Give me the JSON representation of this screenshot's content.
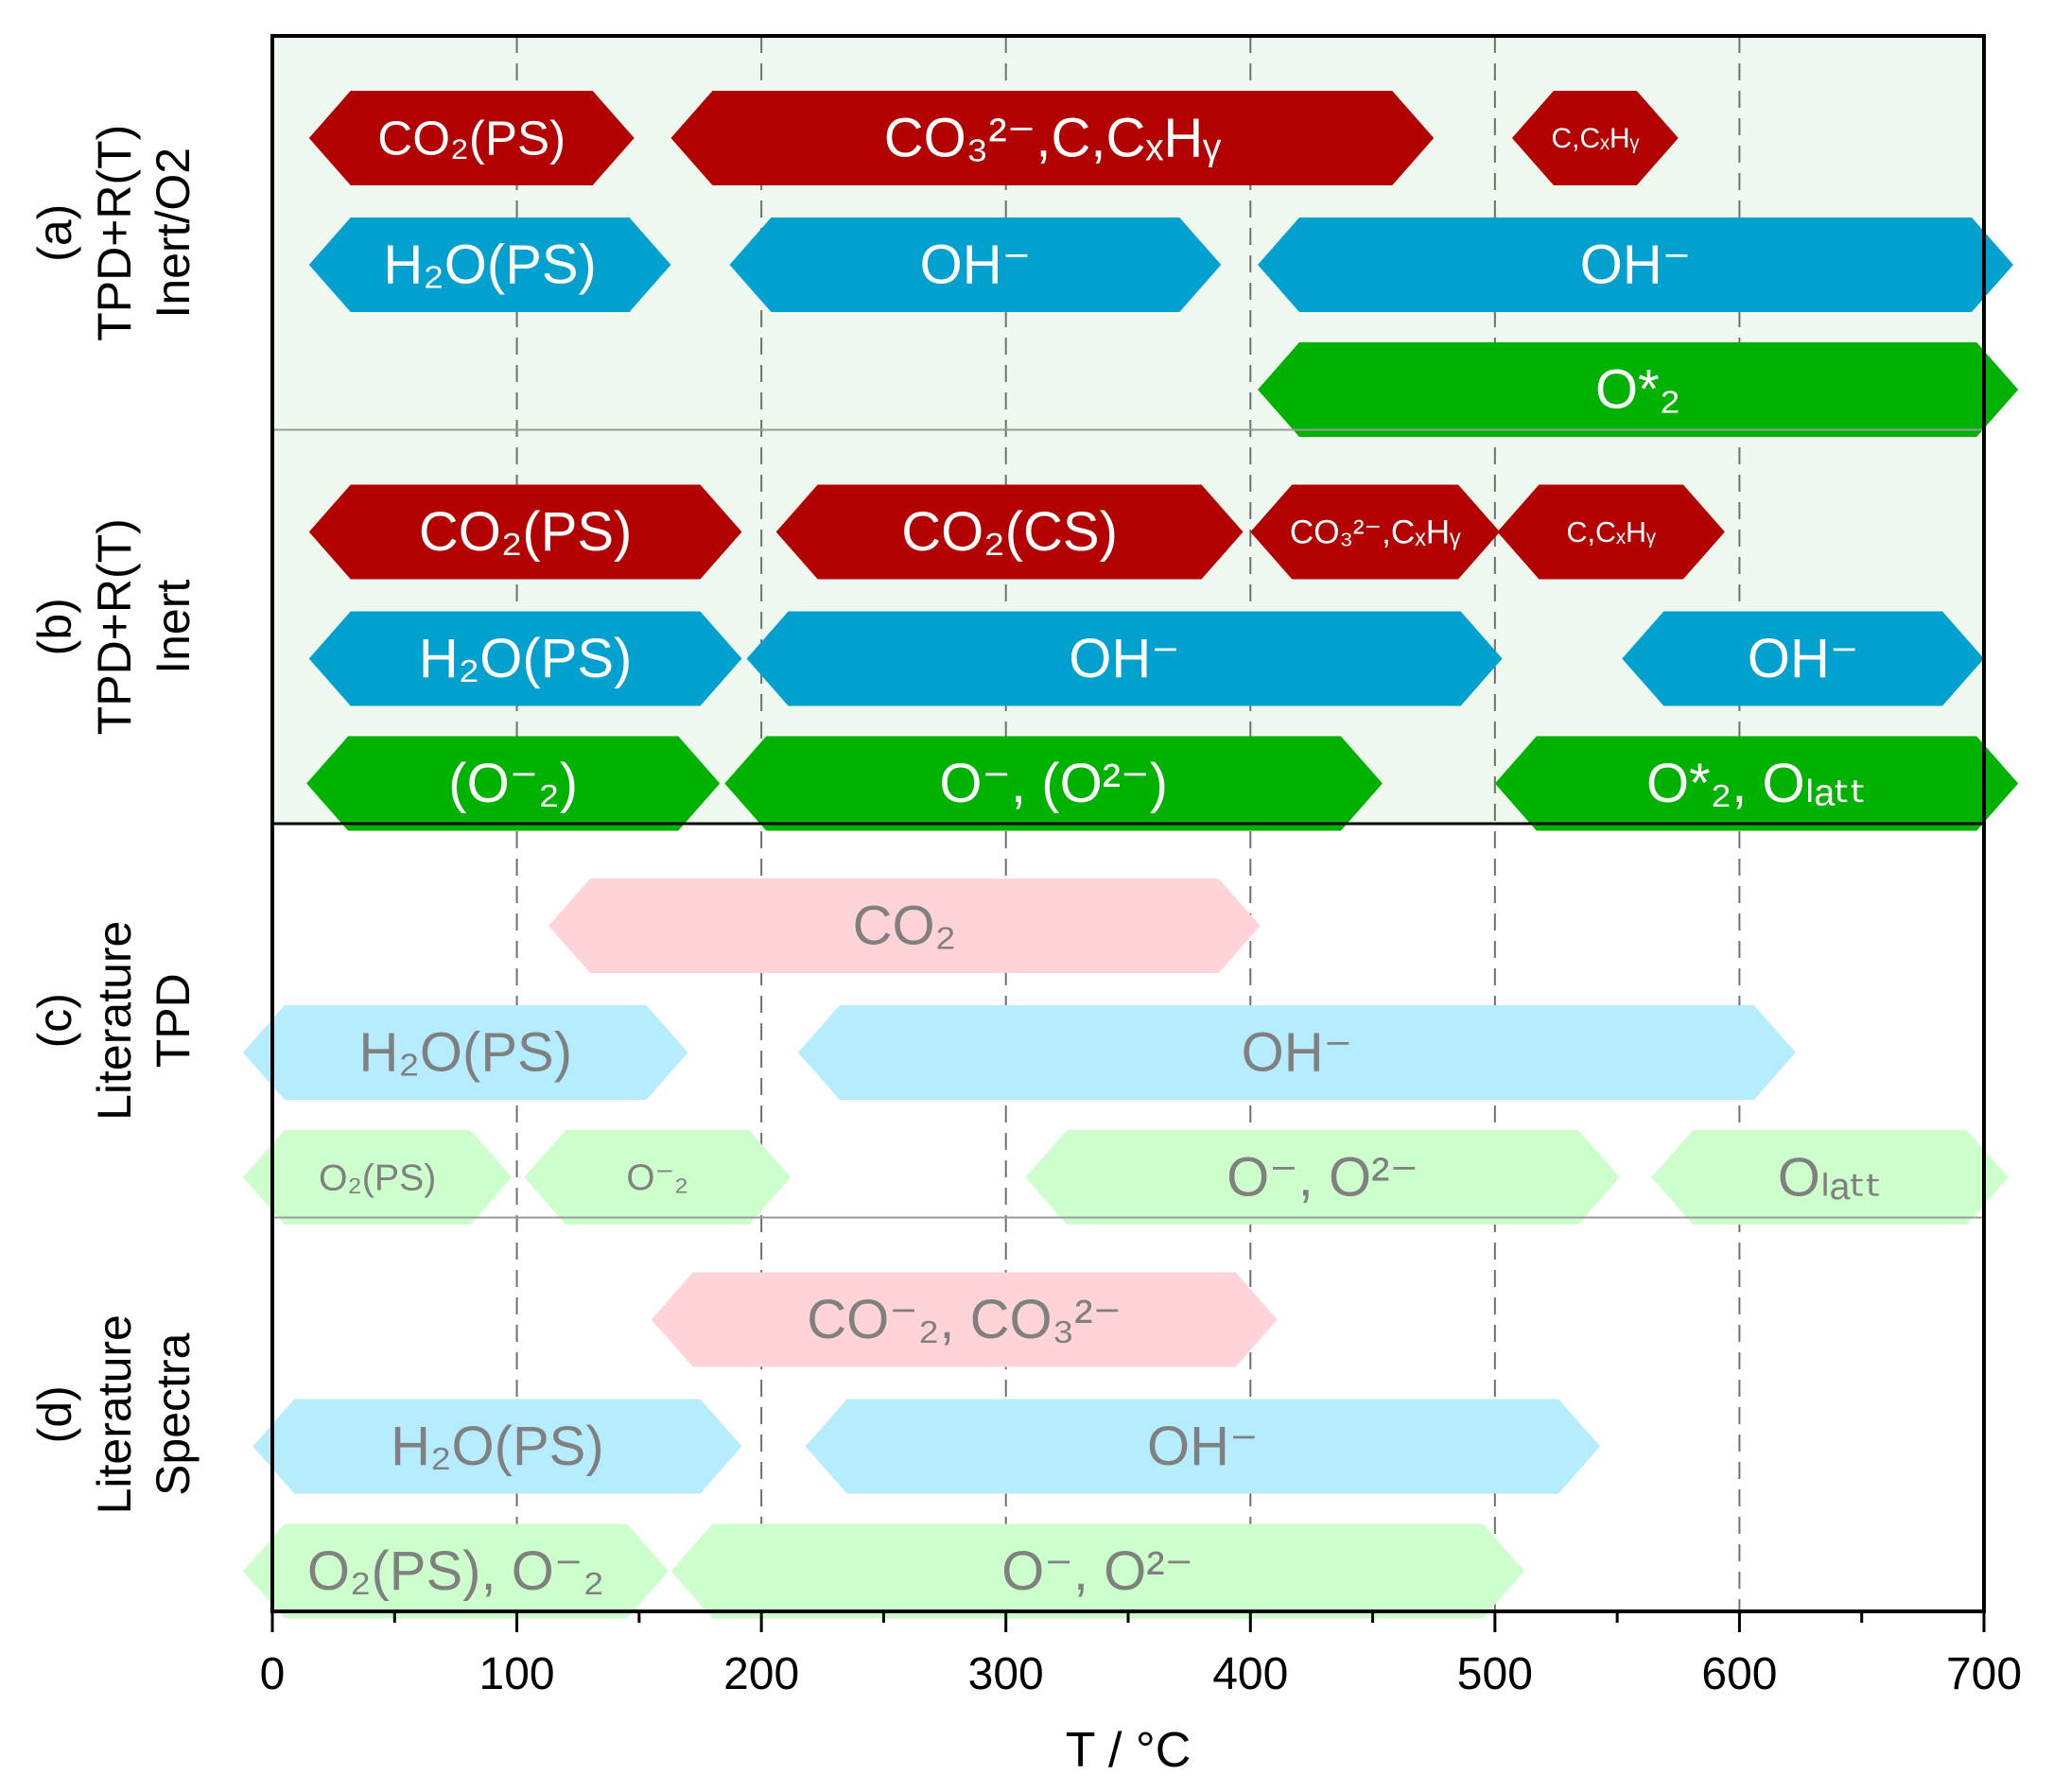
{
  "chart_data": {
    "type": "timeline",
    "xlabel": "T / °C",
    "xlim": [
      0,
      700
    ],
    "xticks": [
      0,
      100,
      200,
      300,
      400,
      500,
      600,
      700
    ],
    "grid_lines": [
      100,
      200,
      300,
      400,
      500,
      600
    ],
    "colors": {
      "red": "#b30000",
      "blue": "#00a0cf",
      "green": "#00b200",
      "red_light": "#ffd3d8",
      "blue_light": "#b5ecff",
      "green_light": "#ccffcc",
      "panel_bg": "#eef8ee",
      "text_light": "#ffffff",
      "text_gray": "#808080"
    },
    "panels": [
      {
        "id": "a",
        "label_lines": [
          "(a)",
          "TPD+R(T)",
          "Inert/O2"
        ],
        "shaded": true,
        "rows": [
          [
            {
              "start": 15,
              "end": 148,
              "label": "CO₂(PS)",
              "color": "red"
            },
            {
              "start": 163,
              "end": 475,
              "label": "CO₃²⁻,C,CₓHᵧ",
              "color": "red"
            },
            {
              "start": 507,
              "end": 575,
              "label": "C,CₓHᵧ",
              "color": "red"
            }
          ],
          [
            {
              "start": 15,
              "end": 163,
              "label": "H₂O(PS)",
              "color": "blue"
            },
            {
              "start": 187,
              "end": 388,
              "label": "OH⁻",
              "color": "blue"
            },
            {
              "start": 403,
              "end": 712,
              "label": "OH⁻",
              "color": "blue"
            }
          ],
          [
            {
              "start": 403,
              "end": 714,
              "label": "O*₂",
              "color": "green"
            }
          ]
        ]
      },
      {
        "id": "b",
        "label_lines": [
          "(b)",
          "TPD+R(T)",
          "Inert"
        ],
        "shaded": true,
        "rows": [
          [
            {
              "start": 15,
              "end": 192,
              "label": "CO₂(PS)",
              "color": "red"
            },
            {
              "start": 206,
              "end": 397,
              "label": "CO₂(CS)",
              "color": "red"
            },
            {
              "start": 400,
              "end": 502,
              "label": "CO₃²⁻,CₓHᵧ",
              "color": "red"
            },
            {
              "start": 501,
              "end": 594,
              "label": "C,CₓHᵧ",
              "color": "red"
            },
            {
              "start": 0,
              "end": 0,
              "label": "",
              "color": "red"
            }
          ],
          [
            {
              "start": 15,
              "end": 192,
              "label": "H₂O(PS)",
              "color": "blue"
            },
            {
              "start": 194,
              "end": 503,
              "label": "OH⁻",
              "color": "blue"
            },
            {
              "start": 552,
              "end": 700,
              "label": "OH⁻",
              "color": "blue"
            }
          ],
          [
            {
              "start": 14,
              "end": 183,
              "label": "(O⁻₂)",
              "color": "green"
            },
            {
              "start": 185,
              "end": 454,
              "label": "O⁻, (O²⁻)",
              "color": "green"
            },
            {
              "start": 500,
              "end": 714,
              "label": "O*₂, Oₗₐₜₜ",
              "color": "green"
            }
          ]
        ]
      },
      {
        "id": "c",
        "label_lines": [
          "(c)",
          "Literature",
          "TPD"
        ],
        "shaded": false,
        "rows": [
          [
            {
              "start": 113,
              "end": 404,
              "label": "CO₂",
              "color": "red_light"
            }
          ],
          [
            {
              "start": -12,
              "end": 170,
              "label": "H₂O(PS)",
              "color": "blue_light"
            },
            {
              "start": 215,
              "end": 623,
              "label": "OH⁻",
              "color": "blue_light"
            }
          ],
          [
            {
              "start": -12,
              "end": 98,
              "label": "O₂(PS)",
              "color": "green_light"
            },
            {
              "start": 103,
              "end": 212,
              "label": "O⁻₂",
              "color": "green_light"
            },
            {
              "start": 308,
              "end": 551,
              "label": "O⁻, O²⁻",
              "color": "green_light"
            },
            {
              "start": 564,
              "end": 710,
              "label": "Oₗₐₜₜ",
              "color": "green_light"
            }
          ]
        ]
      },
      {
        "id": "d",
        "label_lines": [
          "(d)",
          "Literature",
          "Spectra"
        ],
        "shaded": false,
        "rows": [
          [
            {
              "start": 155,
              "end": 411,
              "label": "CO⁻₂, CO₃²⁻",
              "color": "red_light"
            }
          ],
          [
            {
              "start": -8,
              "end": 192,
              "label": "H₂O(PS)",
              "color": "blue_light"
            },
            {
              "start": 218,
              "end": 543,
              "label": "OH⁻",
              "color": "blue_light"
            }
          ],
          [
            {
              "start": -12,
              "end": 162,
              "label": "O₂(PS), O⁻₂",
              "color": "green_light"
            },
            {
              "start": 163,
              "end": 512,
              "label": "O⁻, O²⁻",
              "color": "green_light"
            }
          ]
        ]
      }
    ]
  }
}
